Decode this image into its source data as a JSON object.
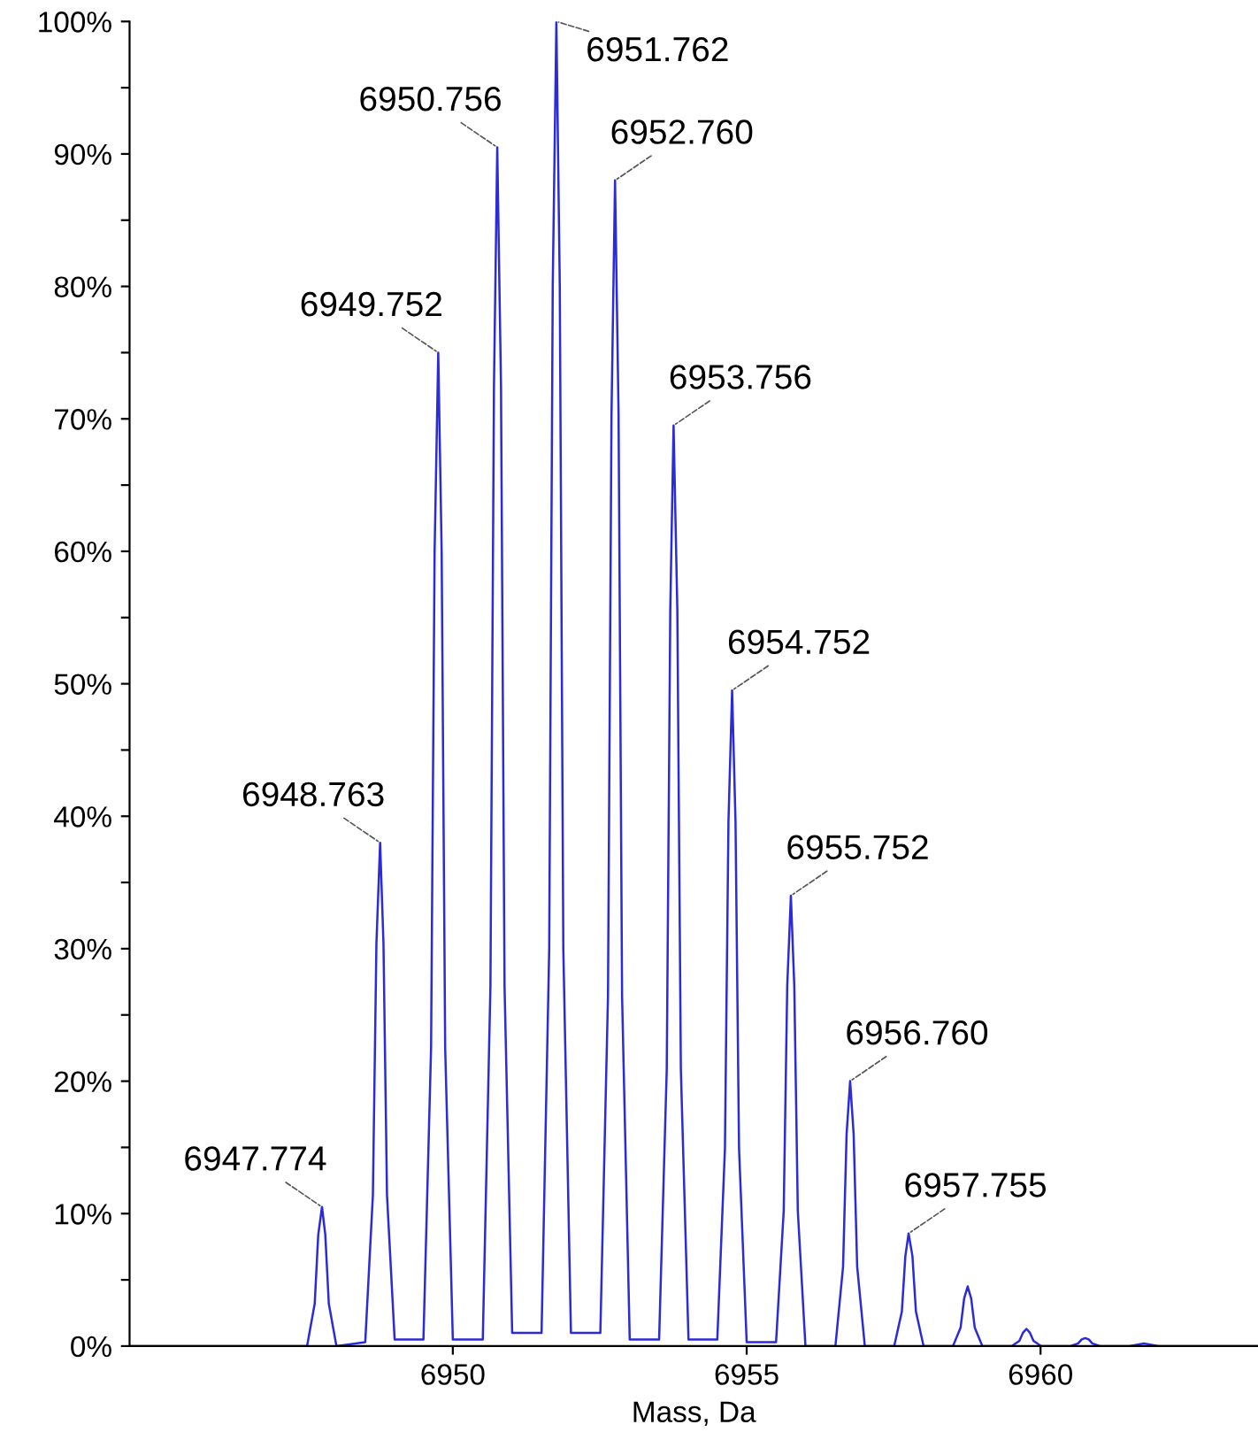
{
  "chart_data": {
    "type": "line",
    "xlabel": "Mass, Da",
    "xlim": [
      6944.5,
      6963.7
    ],
    "xticks": [
      6950,
      6955,
      6960
    ],
    "ylim": [
      0,
      100
    ],
    "yticks": [
      {
        "value": 0,
        "label": "0%"
      },
      {
        "value": 5,
        "label": null
      },
      {
        "value": 10,
        "label": "10%"
      },
      {
        "value": 15,
        "label": null
      },
      {
        "value": 20,
        "label": "20%"
      },
      {
        "value": 25,
        "label": null
      },
      {
        "value": 30,
        "label": "30%"
      },
      {
        "value": 35,
        "label": null
      },
      {
        "value": 40,
        "label": "40%"
      },
      {
        "value": 45,
        "label": null
      },
      {
        "value": 50,
        "label": "50%"
      },
      {
        "value": 55,
        "label": null
      },
      {
        "value": 60,
        "label": "60%"
      },
      {
        "value": 65,
        "label": null
      },
      {
        "value": 70,
        "label": "70%"
      },
      {
        "value": 75,
        "label": null
      },
      {
        "value": 80,
        "label": "80%"
      },
      {
        "value": 85,
        "label": null
      },
      {
        "value": 90,
        "label": "90%"
      },
      {
        "value": 95,
        "label": null
      },
      {
        "value": 100,
        "label": "100%"
      }
    ],
    "grid": false,
    "marker": "none",
    "line_style": "solid",
    "series": [
      {
        "color": "#2b2bd9",
        "x": [
          6944.5,
          6947.52,
          6947.65,
          6947.71,
          6947.774,
          6947.83,
          6947.89,
          6948.02,
          6948.51,
          6948.64,
          6948.7,
          6948.763,
          6948.82,
          6948.88,
          6949.01,
          6949.5,
          6949.63,
          6949.69,
          6949.752,
          6949.81,
          6949.87,
          6950.0,
          6950.51,
          6950.64,
          6950.7,
          6950.756,
          6950.82,
          6950.88,
          6951.01,
          6951.51,
          6951.64,
          6951.7,
          6951.762,
          6951.82,
          6951.88,
          6952.01,
          6952.51,
          6952.64,
          6952.7,
          6952.76,
          6952.82,
          6952.88,
          6953.01,
          6953.51,
          6953.64,
          6953.7,
          6953.756,
          6953.82,
          6953.88,
          6954.01,
          6954.5,
          6954.63,
          6954.69,
          6954.752,
          6954.81,
          6954.87,
          6955.0,
          6955.5,
          6955.63,
          6955.69,
          6955.752,
          6955.81,
          6955.87,
          6956.0,
          6956.51,
          6956.64,
          6956.7,
          6956.76,
          6956.82,
          6956.88,
          6957.01,
          6957.51,
          6957.64,
          6957.7,
          6957.755,
          6957.82,
          6957.88,
          6958.01,
          6958.51,
          6958.64,
          6958.7,
          6958.76,
          6958.82,
          6958.88,
          6959.01,
          6959.51,
          6959.64,
          6959.7,
          6959.76,
          6959.82,
          6959.88,
          6960.01,
          6960.51,
          6960.64,
          6960.7,
          6960.76,
          6960.82,
          6960.88,
          6961.01,
          6961.51,
          6961.76,
          6962.01,
          6963.7
        ],
        "values": [
          0,
          0,
          3.2,
          8.4,
          10.5,
          8.4,
          3.2,
          0,
          0.3,
          11.4,
          30.4,
          38,
          30.4,
          11.4,
          0.5,
          0.5,
          22.5,
          60,
          75,
          60,
          22.5,
          0.5,
          0.5,
          27.2,
          72.4,
          90.5,
          72.4,
          27.2,
          1,
          1,
          30,
          80,
          100,
          80,
          30,
          1,
          1,
          26.4,
          70.4,
          88,
          70.4,
          26.4,
          0.5,
          0.5,
          20.9,
          55.6,
          69.5,
          55.6,
          20.9,
          0.5,
          0.5,
          14.9,
          39.6,
          49.5,
          39.6,
          14.9,
          0.3,
          0.3,
          10.2,
          27.2,
          34,
          27.2,
          10.2,
          0,
          0,
          6,
          16,
          20,
          16,
          6,
          0,
          0,
          2.6,
          6.8,
          8.5,
          6.8,
          2.6,
          0,
          0,
          1.4,
          3.6,
          4.5,
          3.6,
          1.4,
          0,
          0,
          0.4,
          1,
          1.3,
          1,
          0.4,
          0,
          0,
          0.2,
          0.5,
          0.6,
          0.5,
          0.2,
          0,
          0,
          0.2,
          0,
          0
        ]
      }
    ],
    "annotations": [
      {
        "text": "6947.774",
        "x": 6947.774,
        "y": 10.5
      },
      {
        "text": "6948.763",
        "x": 6948.763,
        "y": 38
      },
      {
        "text": "6949.752",
        "x": 6949.752,
        "y": 75
      },
      {
        "text": "6950.756",
        "x": 6950.756,
        "y": 90.5
      },
      {
        "text": "6951.762",
        "x": 6951.762,
        "y": 100
      },
      {
        "text": "6952.760",
        "x": 6952.76,
        "y": 88
      },
      {
        "text": "6953.756",
        "x": 6953.756,
        "y": 69.5
      },
      {
        "text": "6954.752",
        "x": 6954.752,
        "y": 49.5
      },
      {
        "text": "6955.752",
        "x": 6955.752,
        "y": 34
      },
      {
        "text": "6956.760",
        "x": 6956.76,
        "y": 20
      },
      {
        "text": "6957.755",
        "x": 6957.755,
        "y": 8.5
      }
    ]
  }
}
